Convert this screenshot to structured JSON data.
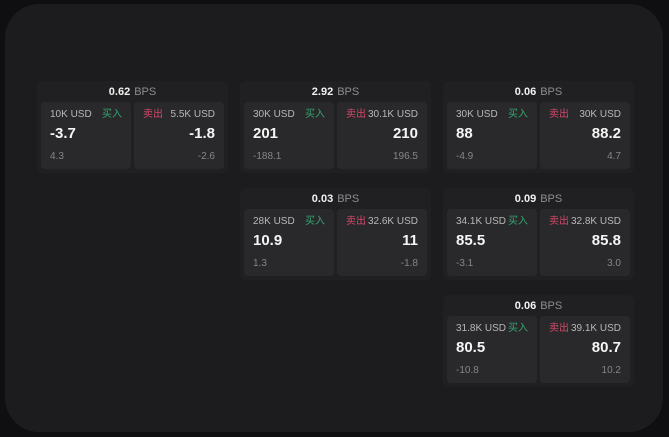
{
  "labels": {
    "bps_unit": "BPS",
    "buy": "买入",
    "sell": "卖出"
  },
  "colors": {
    "buy_green": "#35a56f",
    "sell_red": "#d4476a",
    "surface": "#1c1c1e",
    "card": "#202022",
    "panel": "#29292b"
  },
  "cards": [
    {
      "row": 0,
      "col": 0,
      "bps": "0.62",
      "buy": {
        "amount": "10K USD",
        "price": "-3.7",
        "change": "4.3"
      },
      "sell": {
        "amount": "5.5K USD",
        "price": "-1.8",
        "change": "-2.6"
      }
    },
    {
      "row": 0,
      "col": 1,
      "bps": "2.92",
      "buy": {
        "amount": "30K USD",
        "price": "201",
        "change": "-188.1"
      },
      "sell": {
        "amount": "30.1K USD",
        "price": "210",
        "change": "196.5"
      }
    },
    {
      "row": 0,
      "col": 2,
      "bps": "0.06",
      "buy": {
        "amount": "30K USD",
        "price": "88",
        "change": "-4.9"
      },
      "sell": {
        "amount": "30K USD",
        "price": "88.2",
        "change": "4.7"
      }
    },
    {
      "row": 1,
      "col": 1,
      "bps": "0.03",
      "buy": {
        "amount": "28K USD",
        "price": "10.9",
        "change": "1.3"
      },
      "sell": {
        "amount": "32.6K USD",
        "price": "11",
        "change": "-1.8"
      }
    },
    {
      "row": 1,
      "col": 2,
      "bps": "0.09",
      "buy": {
        "amount": "34.1K USD",
        "price": "85.5",
        "change": "-3.1"
      },
      "sell": {
        "amount": "32.8K USD",
        "price": "85.8",
        "change": "3.0"
      }
    },
    {
      "row": 2,
      "col": 2,
      "bps": "0.06",
      "buy": {
        "amount": "31.8K USD",
        "price": "80.5",
        "change": "-10.8"
      },
      "sell": {
        "amount": "39.1K USD",
        "price": "80.7",
        "change": "10.2"
      }
    }
  ]
}
